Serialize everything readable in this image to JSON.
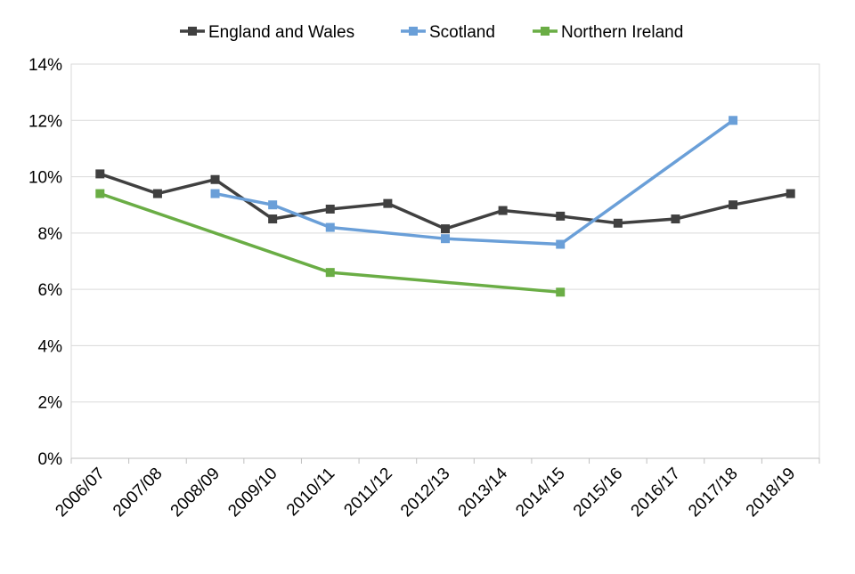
{
  "chart_data": {
    "type": "line",
    "title": "",
    "xlabel": "",
    "ylabel": "",
    "categories": [
      "2006/07",
      "2007/08",
      "2008/09",
      "2009/10",
      "2010/11",
      "2011/12",
      "2012/13",
      "2013/14",
      "2014/15",
      "2015/16",
      "2016/17",
      "2017/18",
      "2018/19"
    ],
    "ylim": [
      0,
      14
    ],
    "yticks": [
      0,
      2,
      4,
      6,
      8,
      10,
      12,
      14
    ],
    "ytick_labels": [
      "0%",
      "2%",
      "4%",
      "6%",
      "8%",
      "10%",
      "12%",
      "14%"
    ],
    "grid": true,
    "legend_position": "top",
    "series": [
      {
        "name": "England and Wales",
        "color": "#404040",
        "values": [
          10.1,
          9.4,
          9.9,
          8.5,
          8.85,
          9.05,
          8.15,
          8.8,
          8.6,
          8.35,
          8.5,
          9.0,
          9.4
        ]
      },
      {
        "name": "Scotland",
        "color": "#6a9fd8",
        "values": [
          null,
          null,
          9.4,
          9.0,
          8.2,
          null,
          7.8,
          null,
          7.6,
          null,
          null,
          12.0,
          null
        ]
      },
      {
        "name": "Northern Ireland",
        "color": "#6aad45",
        "values": [
          9.4,
          null,
          null,
          null,
          6.6,
          null,
          null,
          null,
          5.9,
          null,
          null,
          null,
          null
        ]
      }
    ]
  }
}
